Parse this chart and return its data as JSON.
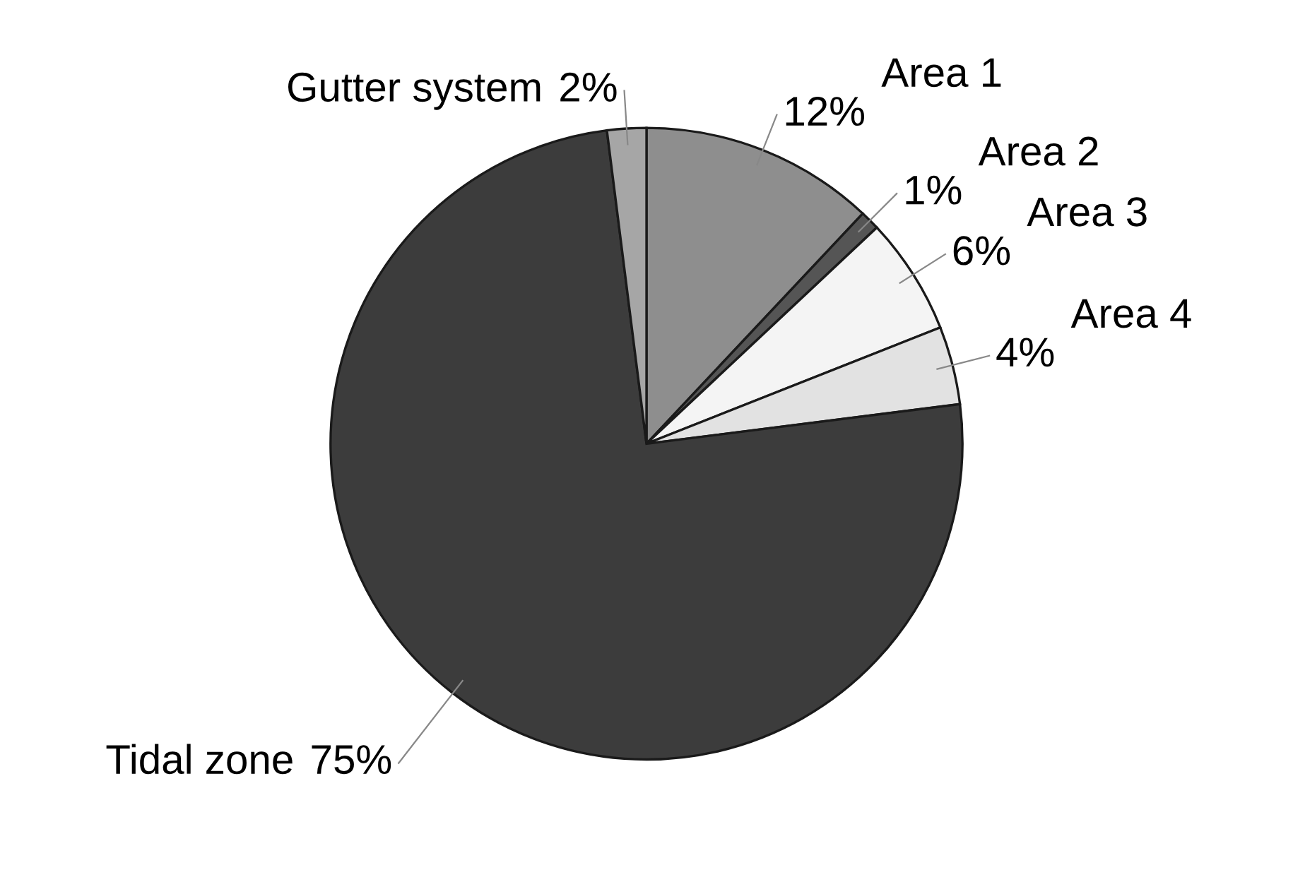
{
  "chart_data": {
    "type": "pie",
    "categories": [
      "Area 1",
      "Area 2",
      "Area 3",
      "Area 4",
      "Tidal zone",
      "Gutter system"
    ],
    "values": [
      12,
      1,
      6,
      4,
      75,
      2
    ],
    "value_labels": [
      "12%",
      "1%",
      "6%",
      "4%",
      "75%",
      "2%"
    ],
    "colors": [
      "#8e8e8e",
      "#555555",
      "#f4f4f4",
      "#e2e2e2",
      "#3c3c3c",
      "#a6a6a6"
    ],
    "legend": false
  }
}
